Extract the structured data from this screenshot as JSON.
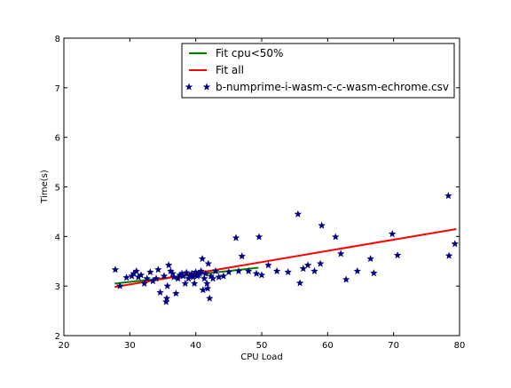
{
  "chart_data": {
    "type": "scatter",
    "title": "",
    "xlabel": "CPU Load",
    "ylabel": "Time(s)",
    "xlim": [
      20,
      80
    ],
    "ylim": [
      2,
      8
    ],
    "xticks": [
      20,
      30,
      40,
      50,
      60,
      70,
      80
    ],
    "yticks": [
      2,
      3,
      4,
      5,
      6,
      7,
      8
    ],
    "grid": false,
    "legend_position": "top-right",
    "series": [
      {
        "name": "Fit cpu<50%",
        "kind": "line",
        "color": "#008000",
        "x": [
          27.7,
          49.5
        ],
        "y": [
          3.05,
          3.37
        ]
      },
      {
        "name": "Fit all",
        "kind": "line",
        "color": "#ff0000",
        "x": [
          27.7,
          79.5
        ],
        "y": [
          2.98,
          4.15
        ]
      },
      {
        "name": "b-numprime-i-wasm-c-c-wasm-echrome.csv",
        "kind": "scatter",
        "marker": "star",
        "color": "#000080",
        "points": [
          [
            27.8,
            3.33
          ],
          [
            28.5,
            3.0
          ],
          [
            29.5,
            3.17
          ],
          [
            30.3,
            3.2
          ],
          [
            30.6,
            3.25
          ],
          [
            31.0,
            3.3
          ],
          [
            31.3,
            3.18
          ],
          [
            31.7,
            3.22
          ],
          [
            32.2,
            3.05
          ],
          [
            32.6,
            3.15
          ],
          [
            33.1,
            3.28
          ],
          [
            33.5,
            3.1
          ],
          [
            34.0,
            3.15
          ],
          [
            34.3,
            3.33
          ],
          [
            34.6,
            2.87
          ],
          [
            35.2,
            3.2
          ],
          [
            35.5,
            2.68
          ],
          [
            35.6,
            2.75
          ],
          [
            35.7,
            3.0
          ],
          [
            35.9,
            3.42
          ],
          [
            36.2,
            3.3
          ],
          [
            36.5,
            3.25
          ],
          [
            36.7,
            3.18
          ],
          [
            37.0,
            2.85
          ],
          [
            37.3,
            3.15
          ],
          [
            37.6,
            3.22
          ],
          [
            37.9,
            3.25
          ],
          [
            38.1,
            3.2
          ],
          [
            38.4,
            3.05
          ],
          [
            38.6,
            3.27
          ],
          [
            38.9,
            3.15
          ],
          [
            39.1,
            3.2
          ],
          [
            39.4,
            3.25
          ],
          [
            39.6,
            3.18
          ],
          [
            39.8,
            3.05
          ],
          [
            40.0,
            3.28
          ],
          [
            40.2,
            3.2
          ],
          [
            40.4,
            3.22
          ],
          [
            40.6,
            3.25
          ],
          [
            40.8,
            3.3
          ],
          [
            41.0,
            3.55
          ],
          [
            41.1,
            2.92
          ],
          [
            41.3,
            3.15
          ],
          [
            41.5,
            3.25
          ],
          [
            41.7,
            3.05
          ],
          [
            41.8,
            2.95
          ],
          [
            41.9,
            3.45
          ],
          [
            42.1,
            2.75
          ],
          [
            42.3,
            3.2
          ],
          [
            42.6,
            3.15
          ],
          [
            43.0,
            3.3
          ],
          [
            43.5,
            3.18
          ],
          [
            44.2,
            3.2
          ],
          [
            45.0,
            3.28
          ],
          [
            46.1,
            3.97
          ],
          [
            46.5,
            3.3
          ],
          [
            47.0,
            3.6
          ],
          [
            48.0,
            3.3
          ],
          [
            49.2,
            3.25
          ],
          [
            49.6,
            3.99
          ],
          [
            50.0,
            3.22
          ],
          [
            51.0,
            3.42
          ],
          [
            52.3,
            3.3
          ],
          [
            54.0,
            3.28
          ],
          [
            55.5,
            4.45
          ],
          [
            55.8,
            3.06
          ],
          [
            56.3,
            3.35
          ],
          [
            57.0,
            3.42
          ],
          [
            58.0,
            3.3
          ],
          [
            58.9,
            3.45
          ],
          [
            59.1,
            4.22
          ],
          [
            61.2,
            3.99
          ],
          [
            62.0,
            3.65
          ],
          [
            62.8,
            3.13
          ],
          [
            64.5,
            3.3
          ],
          [
            66.5,
            3.55
          ],
          [
            67.0,
            3.26
          ],
          [
            69.8,
            4.05
          ],
          [
            70.6,
            3.62
          ],
          [
            78.3,
            4.82
          ],
          [
            78.4,
            3.61
          ],
          [
            79.3,
            3.85
          ]
        ]
      }
    ]
  }
}
